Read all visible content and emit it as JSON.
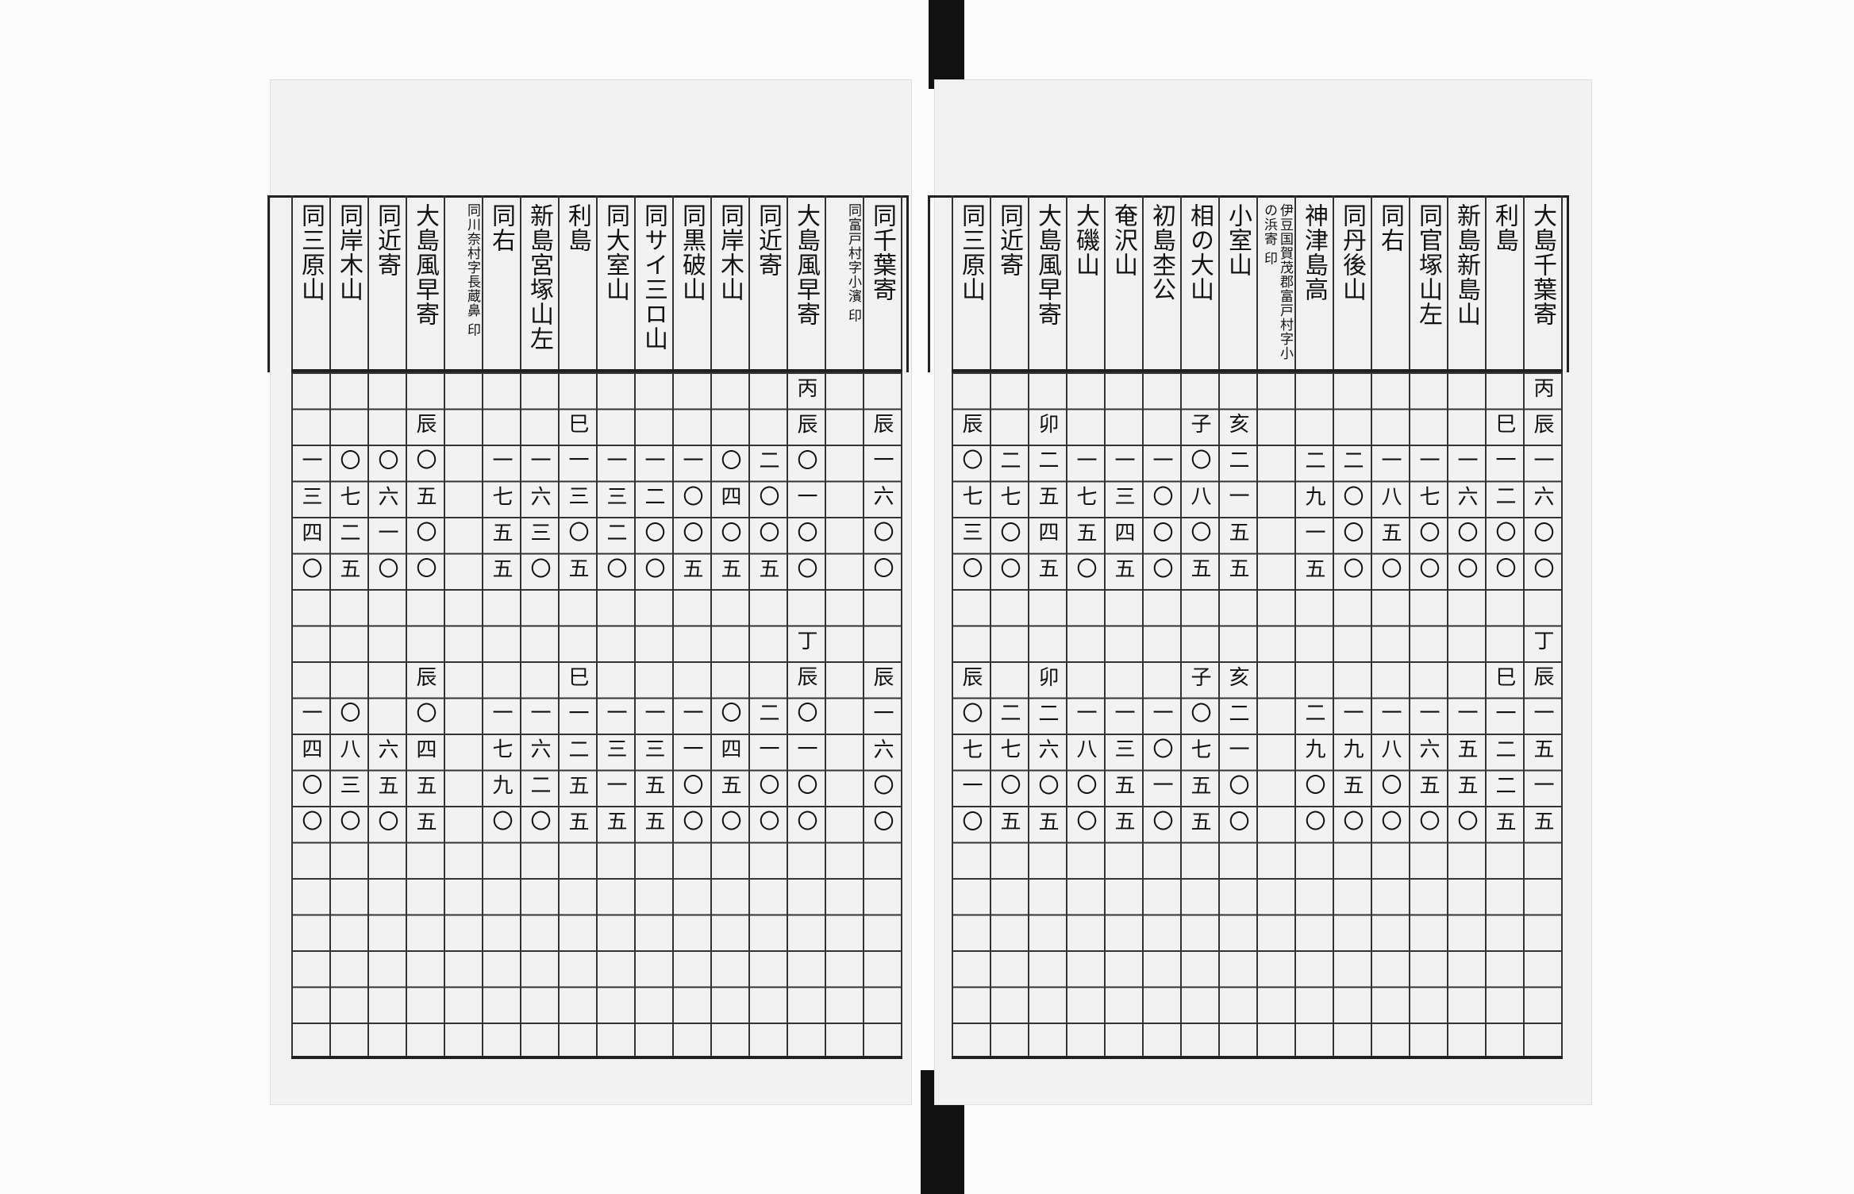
{
  "pages": [
    {
      "columns": [
        {
          "header": "大島千葉寄",
          "entries": [
            "丙辰一六〇〇",
            "丁辰一五一五"
          ]
        },
        {
          "header": "利島",
          "entries": [
            "巳一二〇〇",
            "巳一二二五"
          ]
        },
        {
          "header": "新島新島山",
          "entries": [
            "一六〇〇",
            "一五五〇"
          ]
        },
        {
          "header": "同官塚山左",
          "entries": [
            "一七〇〇",
            "一六五〇"
          ]
        },
        {
          "header": "同右",
          "entries": [
            "一八五〇",
            "一八〇〇"
          ]
        },
        {
          "header": "同丹後山",
          "entries": [
            "二〇〇〇",
            "一九五〇"
          ]
        },
        {
          "header": "神津島高",
          "entries": [
            "二九一五",
            "二九〇〇"
          ]
        },
        {
          "header": "伊豆国賀茂郡富戸村字小の浜寄 印"
        },
        {
          "header": "小室山",
          "entries": [
            "亥二一五五",
            "亥二一〇〇"
          ]
        },
        {
          "header": "相の大山",
          "entries": [
            "子〇八〇五",
            "子〇七五五"
          ]
        },
        {
          "header": "初島杢公",
          "entries": [
            "一〇〇〇",
            "一〇一〇"
          ]
        },
        {
          "header": "奄沢山",
          "entries": [
            "一三四五",
            "一三五五"
          ]
        },
        {
          "header": "大磯山",
          "entries": [
            "一七五〇",
            "一八〇〇"
          ]
        },
        {
          "header": "大島風早寄",
          "entries": [
            "卯二五四五",
            "卯二六〇五"
          ]
        },
        {
          "header": "同近寄",
          "entries": [
            "二七〇〇",
            "二七〇五"
          ]
        },
        {
          "header": "同三原山",
          "entries": [
            "辰〇七三〇",
            "辰〇七一〇"
          ]
        }
      ]
    },
    {
      "columns": [
        {
          "header": "同千葉寄",
          "entries": [
            "辰一六〇〇",
            "辰一六〇〇"
          ]
        },
        {
          "header": "同富戸村字小濱 印"
        },
        {
          "header": "大島風早寄",
          "entries": [
            "丙辰〇一〇〇",
            "丁辰〇一〇〇"
          ]
        },
        {
          "header": "同近寄",
          "entries": [
            "二〇〇五",
            "二一〇〇"
          ]
        },
        {
          "header": "同岸木山",
          "entries": [
            "〇四〇五",
            "〇四五〇"
          ]
        },
        {
          "header": "同黒破山",
          "entries": [
            "一〇〇五",
            "一一〇〇"
          ]
        },
        {
          "header": "同サイ三ロ山",
          "entries": [
            "一二〇〇",
            "一三五五"
          ]
        },
        {
          "header": "同大室山",
          "entries": [
            "一三二〇",
            "一三一五"
          ]
        },
        {
          "header": "利島",
          "entries": [
            "巳一三〇五",
            "巳一二五五"
          ]
        },
        {
          "header": "新島宮塚山左",
          "entries": [
            "一六三〇",
            "一六二〇"
          ]
        },
        {
          "header": "同右",
          "entries": [
            "一七五五",
            "一七九〇"
          ]
        },
        {
          "header": "同川奈村字長蔵鼻 印"
        },
        {
          "header": "大島風早寄",
          "entries": [
            "辰〇五〇〇",
            "辰〇四五五"
          ]
        },
        {
          "header": "同近寄",
          "entries": [
            "〇六一〇",
            "六五〇"
          ]
        },
        {
          "header": "同岸木山",
          "entries": [
            "〇七二五",
            "〇八三〇"
          ]
        },
        {
          "header": "同三原山",
          "entries": [
            "一三四〇",
            "一四〇〇"
          ]
        }
      ]
    }
  ]
}
